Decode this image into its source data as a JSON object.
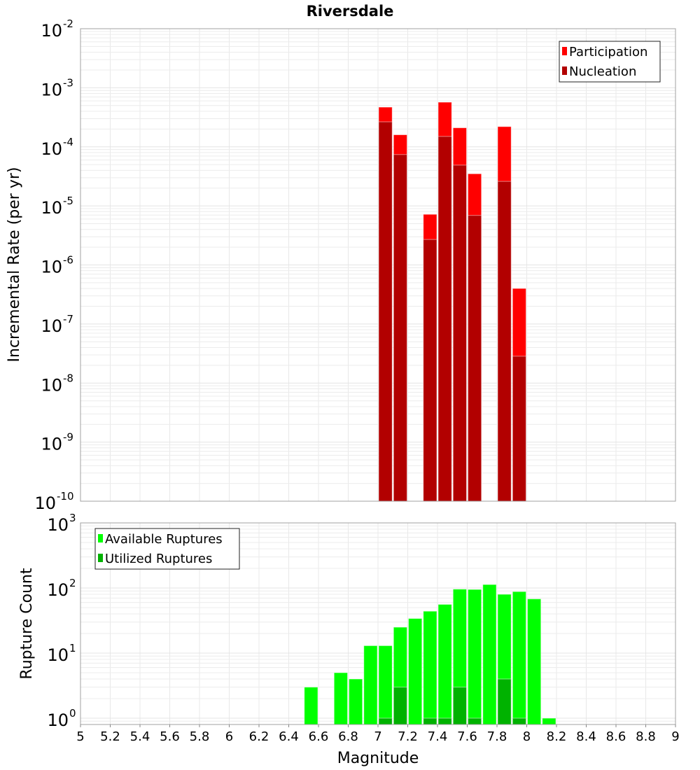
{
  "chart_data": [
    {
      "type": "bar",
      "title": "Riversdale",
      "xlabel": "Magnitude",
      "ylabel": "Incremental Rate (per yr)",
      "yscale": "log",
      "xlim": [
        5,
        9
      ],
      "ylim": [
        1e-10,
        0.01
      ],
      "y_tick_exponents": [
        -10,
        -9,
        -8,
        -7,
        -6,
        -5,
        -4,
        -3,
        -2
      ],
      "grid": true,
      "legend_position": "top-right",
      "bin_width": 0.1,
      "x": [
        7.05,
        7.15,
        7.35,
        7.45,
        7.55,
        7.65,
        7.85,
        7.95
      ],
      "series": [
        {
          "name": "Participation",
          "color": "#ff0000",
          "values": [
            0.00047,
            0.00016,
            7.2e-06,
            0.00057,
            0.00021,
            3.5e-05,
            0.00022,
            4e-07
          ]
        },
        {
          "name": "Nucleation",
          "color": "#b20000",
          "values": [
            0.000265,
            7.4e-05,
            2.7e-06,
            0.00015,
            4.9e-05,
            6.9e-06,
            2.6e-05,
            2.85e-08
          ]
        }
      ]
    },
    {
      "type": "bar",
      "xlabel": "Magnitude",
      "ylabel": "Rupture Count",
      "yscale": "log",
      "xlim": [
        5,
        9
      ],
      "ylim": [
        0.8,
        1000
      ],
      "y_tick_exponents": [
        0,
        1,
        2,
        3
      ],
      "x_ticks": [
        "5",
        "5.2",
        "5.4",
        "5.6",
        "5.8",
        "6",
        "6.2",
        "6.4",
        "6.6",
        "6.8",
        "7",
        "7.2",
        "7.4",
        "7.6",
        "7.8",
        "8",
        "8.2",
        "8.4",
        "8.6",
        "8.8",
        "9"
      ],
      "grid": true,
      "legend_position": "top-left",
      "bin_width": 0.1,
      "series": [
        {
          "name": "Available Ruptures",
          "color": "#00ff00",
          "x": [
            6.55,
            6.75,
            6.85,
            6.95,
            7.05,
            7.15,
            7.25,
            7.35,
            7.45,
            7.55,
            7.65,
            7.75,
            7.85,
            7.95,
            8.05,
            8.15
          ],
          "values": [
            3,
            5,
            4,
            13,
            13,
            25,
            34,
            44,
            56,
            96,
            95,
            113,
            80,
            88,
            68,
            1
          ]
        },
        {
          "name": "Utilized Ruptures",
          "color": "#00b200",
          "x": [
            7.05,
            7.15,
            7.35,
            7.45,
            7.55,
            7.65,
            7.85,
            7.95
          ],
          "values": [
            1,
            3,
            1,
            1,
            3,
            1,
            4,
            1
          ]
        }
      ]
    }
  ]
}
